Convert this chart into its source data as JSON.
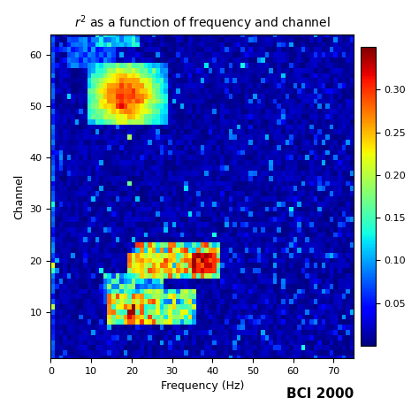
{
  "title": "$r^2$ as a function of frequency and channel",
  "xlabel": "Frequency (Hz)",
  "ylabel": "Channel",
  "watermark": "BCI 2000",
  "cbar_ticks": [
    0.05,
    0.1,
    0.15,
    0.2,
    0.25,
    0.3
  ],
  "vmin": 0.0,
  "vmax": 0.35,
  "freq_min": 0,
  "freq_max": 75,
  "chan_min": 1,
  "chan_max": 64,
  "n_freq": 75,
  "n_chan": 64,
  "xticks": [
    0,
    10,
    20,
    30,
    40,
    50,
    60,
    70
  ],
  "yticks": [
    10,
    20,
    30,
    40,
    50,
    60
  ],
  "figsize": [
    4.74,
    4.67
  ],
  "dpi": 100
}
